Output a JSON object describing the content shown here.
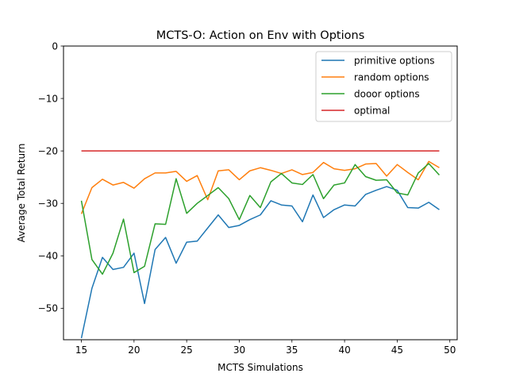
{
  "chart_data": {
    "type": "line",
    "title": "MCTS-O: Action on Env with Options",
    "xlabel": "MCTS Simulations",
    "ylabel": "Average Total Return",
    "xlim": [
      13.3,
      50.7
    ],
    "ylim": [
      -56,
      0
    ],
    "xticks": [
      15,
      20,
      25,
      30,
      35,
      40,
      45,
      50
    ],
    "yticks": [
      0,
      -10,
      -20,
      -30,
      -40,
      -50
    ],
    "xtick_labels": [
      "15",
      "20",
      "25",
      "30",
      "35",
      "40",
      "45",
      "50"
    ],
    "ytick_labels": [
      "0",
      "−10",
      "−20",
      "−30",
      "−40",
      "−50"
    ],
    "grid": false,
    "legend_position": "top-right",
    "x": [
      15,
      16,
      17,
      18,
      19,
      20,
      21,
      22,
      23,
      24,
      25,
      26,
      27,
      28,
      29,
      30,
      31,
      32,
      33,
      34,
      35,
      36,
      37,
      38,
      39,
      40,
      41,
      42,
      43,
      44,
      45,
      46,
      47,
      48,
      49
    ],
    "series": [
      {
        "name": "primitive options",
        "color": "#1f77b4",
        "values": [
          -55.7,
          -46.2,
          -40.3,
          -42.6,
          -42.2,
          -39.5,
          -49.1,
          -38.8,
          -36.5,
          -41.4,
          -37.4,
          -37.2,
          -34.7,
          -32.2,
          -34.6,
          -34.2,
          -33.1,
          -32.2,
          -29.5,
          -30.3,
          -30.5,
          -33.5,
          -28.4,
          -32.7,
          -31.2,
          -30.3,
          -30.5,
          -28.3,
          -27.5,
          -26.8,
          -27.5,
          -30.8,
          -30.9,
          -29.8,
          -31.2
        ]
      },
      {
        "name": "random options",
        "color": "#ff7f0e",
        "values": [
          -32.0,
          -27.0,
          -25.4,
          -26.5,
          -26.0,
          -27.1,
          -25.3,
          -24.2,
          -24.2,
          -23.9,
          -25.8,
          -24.7,
          -29.3,
          -23.8,
          -23.6,
          -25.5,
          -23.8,
          -23.2,
          -23.7,
          -24.3,
          -23.6,
          -24.5,
          -24.1,
          -22.2,
          -23.4,
          -23.7,
          -23.4,
          -22.5,
          -22.4,
          -24.8,
          -22.6,
          -24.1,
          -25.5,
          -22.0,
          -23.2
        ]
      },
      {
        "name": "dooor options",
        "color": "#2ca02c",
        "values": [
          -29.5,
          -40.7,
          -43.5,
          -39.5,
          -33.0,
          -43.2,
          -42.0,
          -33.9,
          -34.0,
          -25.3,
          -31.9,
          -30.0,
          -28.5,
          -27.0,
          -29.1,
          -33.1,
          -28.5,
          -30.8,
          -25.9,
          -24.3,
          -26.1,
          -26.4,
          -24.5,
          -29.1,
          -26.5,
          -26.1,
          -22.6,
          -24.9,
          -25.6,
          -25.5,
          -28.0,
          -28.4,
          -24.2,
          -22.4,
          -24.6
        ]
      },
      {
        "name": "optimal",
        "color": "#d62728",
        "values": [
          -20,
          -20,
          -20,
          -20,
          -20,
          -20,
          -20,
          -20,
          -20,
          -20,
          -20,
          -20,
          -20,
          -20,
          -20,
          -20,
          -20,
          -20,
          -20,
          -20,
          -20,
          -20,
          -20,
          -20,
          -20,
          -20,
          -20,
          -20,
          -20,
          -20,
          -20,
          -20,
          -20,
          -20,
          -20
        ]
      }
    ]
  }
}
